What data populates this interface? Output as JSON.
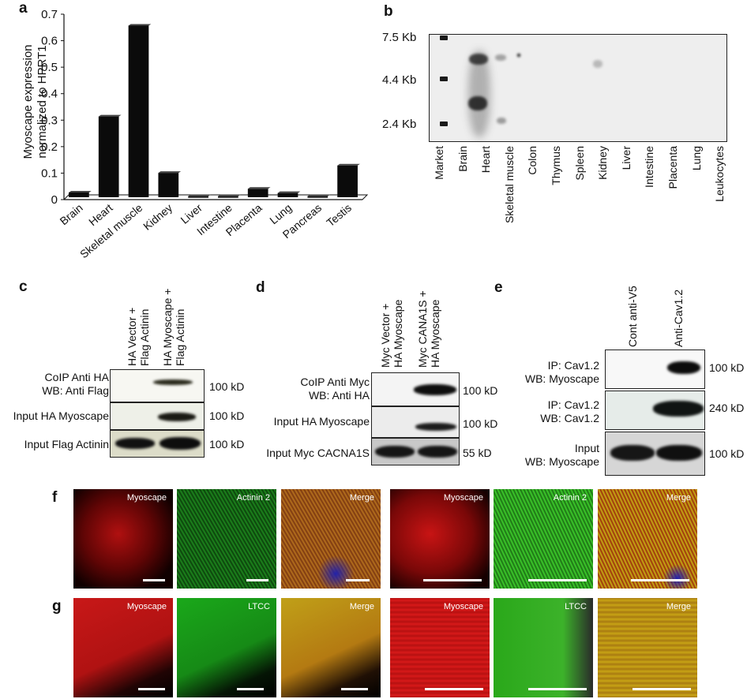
{
  "panels": {
    "a": "a",
    "b": "b",
    "c": "c",
    "d": "d",
    "e": "e",
    "f": "f",
    "g": "g"
  },
  "chart_data": {
    "type": "bar",
    "categories": [
      "Brain",
      "Heart",
      "Skeletal muscle",
      "Kidney",
      "Liver",
      "Intestine",
      "Placenta",
      "Lung",
      "Pancreas",
      "Testis"
    ],
    "values": [
      0.018,
      0.305,
      0.648,
      0.092,
      0.004,
      0.004,
      0.032,
      0.016,
      0.004,
      0.12
    ],
    "ylabel_line1": "Myoscape expression",
    "ylabel_line2": "normalized to HPRT1",
    "ylim": [
      0,
      0.7
    ],
    "yticks": [
      "0",
      "0.1",
      "0.2",
      "0.3",
      "0.4",
      "0.5",
      "0.6",
      "0.7"
    ],
    "grid": false
  },
  "northern": {
    "markers": [
      "7.5 Kb",
      "4.4 Kb",
      "2.4 Kb"
    ],
    "lanes": [
      "Market",
      "Brain",
      "Heart",
      "Skeletal muscle",
      "Colon",
      "Thymus",
      "Spleen",
      "Kidney",
      "Liver",
      "Intestine",
      "Placenta",
      "Lung",
      "Leukocytes"
    ]
  },
  "panel_c": {
    "lanes": [
      [
        "HA Vector +",
        "Flag Actinin"
      ],
      [
        "HA Myoscape +",
        "Flag Actinin"
      ]
    ],
    "rows": [
      {
        "label": [
          "CoIP Anti HA",
          "WB: Anti Flag"
        ],
        "kd": "100 kD"
      },
      {
        "label": [
          "Input HA Myoscape"
        ],
        "kd": "100 kD"
      },
      {
        "label": [
          "Input Flag Actinin"
        ],
        "kd": "100 kD"
      }
    ]
  },
  "panel_d": {
    "lanes": [
      [
        "Myc Vector +",
        "HA Myoscape"
      ],
      [
        "Myc CANA1S +",
        "HA Myoscape"
      ]
    ],
    "rows": [
      {
        "label": [
          "CoIP Anti Myc",
          "WB: Anti HA"
        ],
        "kd": "100 kD"
      },
      {
        "label": [
          "Input HA Myoscape"
        ],
        "kd": "100 kD"
      },
      {
        "label": [
          "Input Myc CACNA1S"
        ],
        "kd": "55 kD"
      }
    ]
  },
  "panel_e": {
    "lanes": [
      "Cont anti-V5",
      "Anti-Cav1.2"
    ],
    "rows": [
      {
        "label": [
          "IP: Cav1.2",
          "WB: Myoscape"
        ],
        "kd": "100 kD"
      },
      {
        "label": [
          "IP: Cav1.2",
          "WB: Cav1.2"
        ],
        "kd": "240 kD"
      },
      {
        "label": [
          "Input",
          "WB: Myoscape"
        ],
        "kd": "100 kD"
      }
    ]
  },
  "micrographs": {
    "f": [
      "Myoscape",
      "Actinin 2",
      "Merge",
      "Myoscape",
      "Actinin 2",
      "Merge"
    ],
    "g": [
      "Myoscape",
      "LTCC",
      "Merge",
      "Myoscape",
      "LTCC",
      "Merge"
    ]
  }
}
